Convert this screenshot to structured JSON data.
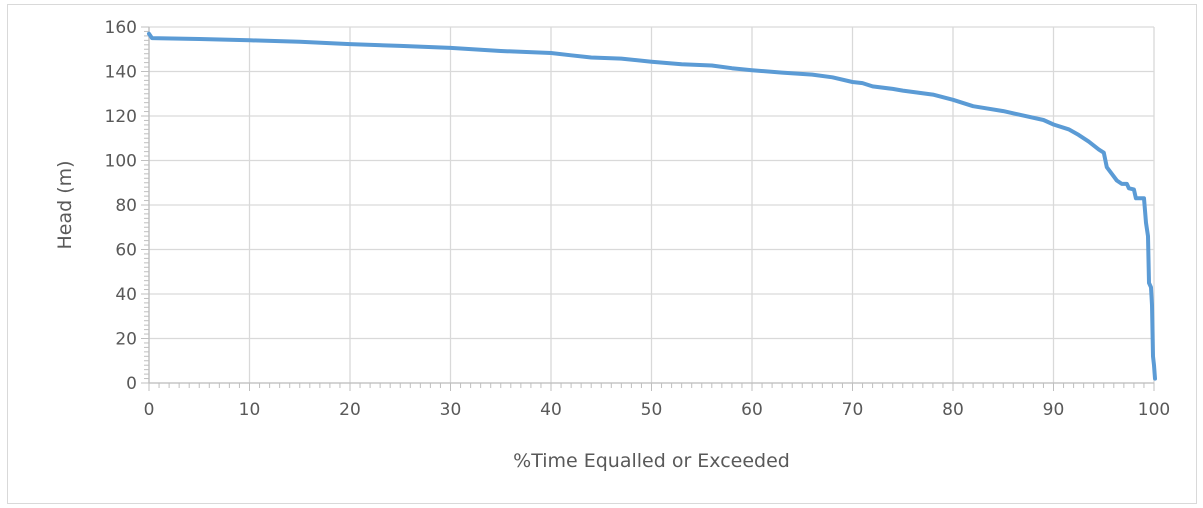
{
  "chart_data": {
    "type": "line",
    "title": "",
    "xlabel": "%Time Equalled or Exceeded",
    "ylabel": "Head (m)",
    "xlim": [
      0,
      100
    ],
    "ylim": [
      0,
      160
    ],
    "x_ticks": [
      0,
      10,
      20,
      30,
      40,
      50,
      60,
      70,
      80,
      90,
      100
    ],
    "y_ticks": [
      0,
      20,
      40,
      60,
      80,
      100,
      120,
      140,
      160
    ],
    "grid": true,
    "legend": "none",
    "series": [
      {
        "color": "#5b9bd5",
        "points": [
          [
            0,
            157
          ],
          [
            0.3,
            155
          ],
          [
            5,
            154.6
          ],
          [
            10,
            154
          ],
          [
            15,
            153.4
          ],
          [
            20,
            152.3
          ],
          [
            25,
            151.5
          ],
          [
            30,
            150.6
          ],
          [
            35,
            149.2
          ],
          [
            40,
            148.3
          ],
          [
            42,
            147.3
          ],
          [
            44,
            146.3
          ],
          [
            47,
            145.8
          ],
          [
            50,
            144.4
          ],
          [
            53,
            143.3
          ],
          [
            56,
            142.7
          ],
          [
            58,
            141.5
          ],
          [
            60,
            140.6
          ],
          [
            63,
            139.5
          ],
          [
            66,
            138.6
          ],
          [
            68,
            137.4
          ],
          [
            70,
            135.3
          ],
          [
            71,
            134.8
          ],
          [
            72,
            133.3
          ],
          [
            74,
            132.2
          ],
          [
            75,
            131.4
          ],
          [
            78,
            129.6
          ],
          [
            80,
            127.3
          ],
          [
            82,
            124.4
          ],
          [
            83,
            123.7
          ],
          [
            85,
            122.2
          ],
          [
            87,
            120.2
          ],
          [
            89,
            118.2
          ],
          [
            90,
            116.2
          ],
          [
            91.5,
            114
          ],
          [
            92.5,
            111.5
          ],
          [
            93.5,
            108.5
          ],
          [
            94.5,
            105
          ],
          [
            95,
            103.5
          ],
          [
            95.3,
            97
          ],
          [
            95.8,
            94
          ],
          [
            96.3,
            91
          ],
          [
            96.8,
            89.5
          ],
          [
            97.3,
            89.5
          ],
          [
            97.5,
            87.5
          ],
          [
            98,
            87
          ],
          [
            98.2,
            83
          ],
          [
            99,
            83
          ],
          [
            99.2,
            72
          ],
          [
            99.4,
            66
          ],
          [
            99.5,
            45
          ],
          [
            99.7,
            43
          ],
          [
            99.8,
            35
          ],
          [
            99.9,
            12
          ],
          [
            100,
            8
          ],
          [
            100.1,
            2
          ]
        ]
      }
    ]
  }
}
